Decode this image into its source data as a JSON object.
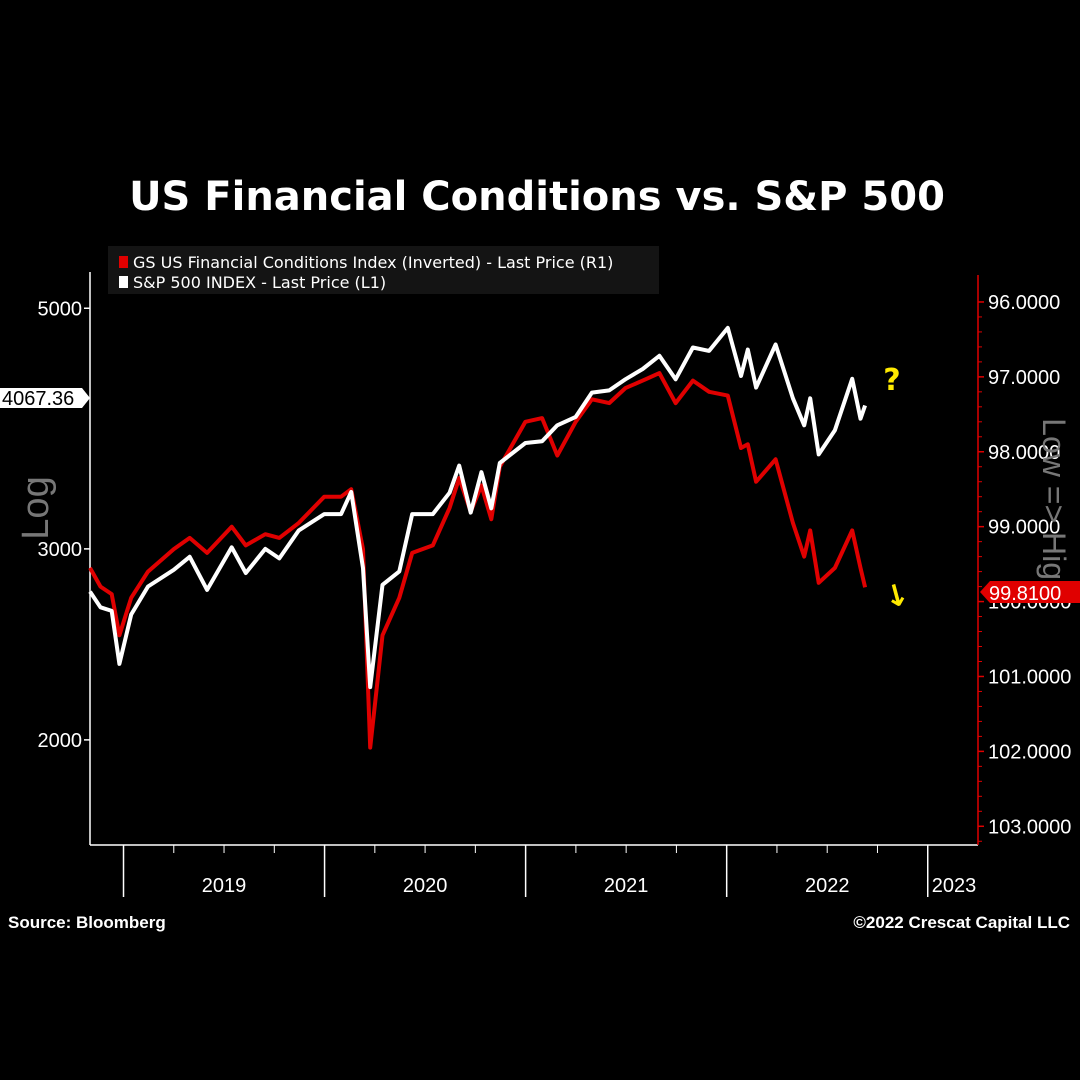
{
  "title": "US Financial Conditions vs. S&P 500",
  "footer": {
    "source": "Source: Bloomberg",
    "copyright": "©2022 Crescat Capital LLC"
  },
  "annotations": {
    "question_mark": "?",
    "arrow": "↓"
  },
  "colors": {
    "sp500": "#ffffff",
    "fci": "#e00000",
    "annotation": "#ffea00",
    "axis_right": "#e00000",
    "axis_left": "#ffffff"
  },
  "chart_data": {
    "type": "line",
    "title": "US Financial Conditions vs. S&P 500",
    "legend": [
      "GS US Financial Conditions Index (Inverted) - Last Price (R1)",
      "S&P 500 INDEX - Last Price (L1)"
    ],
    "left_axis": {
      "label": "Log",
      "scale": "log",
      "range": [
        1600,
        5400
      ],
      "ticks": [
        2000,
        3000,
        5000
      ],
      "last_value_label": "4067.36"
    },
    "right_axis": {
      "label": "Low => High",
      "inverted": true,
      "range": [
        95.6,
        103.25
      ],
      "ticks": [
        "96.0000",
        "97.0000",
        "98.0000",
        "99.0000",
        "100.0000",
        "101.0000",
        "102.0000",
        "103.0000"
      ],
      "last_value_label": "99.8100"
    },
    "x_ticks": [
      "2019",
      "2020",
      "2021",
      "2022",
      "2023"
    ],
    "x_range": [
      "2018-11",
      "2023-04"
    ],
    "series": [
      {
        "name": "S&P 500 INDEX - Last Price (L1)",
        "axis": "left",
        "points": [
          [
            "2018-11-01",
            2740
          ],
          [
            "2018-11-20",
            2650
          ],
          [
            "2018-12-10",
            2630
          ],
          [
            "2018-12-24",
            2350
          ],
          [
            "2019-01-15",
            2610
          ],
          [
            "2019-02-15",
            2770
          ],
          [
            "2019-04-01",
            2870
          ],
          [
            "2019-04-30",
            2950
          ],
          [
            "2019-05-31",
            2750
          ],
          [
            "2019-07-15",
            3010
          ],
          [
            "2019-08-10",
            2850
          ],
          [
            "2019-09-15",
            3000
          ],
          [
            "2019-10-10",
            2940
          ],
          [
            "2019-11-15",
            3120
          ],
          [
            "2019-12-31",
            3230
          ],
          [
            "2020-01-31",
            3230
          ],
          [
            "2020-02-19",
            3386
          ],
          [
            "2020-03-10",
            2880
          ],
          [
            "2020-03-23",
            2237
          ],
          [
            "2020-04-15",
            2780
          ],
          [
            "2020-05-15",
            2860
          ],
          [
            "2020-06-08",
            3230
          ],
          [
            "2020-07-15",
            3230
          ],
          [
            "2020-08-15",
            3380
          ],
          [
            "2020-09-02",
            3580
          ],
          [
            "2020-09-23",
            3240
          ],
          [
            "2020-10-12",
            3530
          ],
          [
            "2020-10-30",
            3270
          ],
          [
            "2020-11-15",
            3600
          ],
          [
            "2020-12-31",
            3756
          ],
          [
            "2021-01-31",
            3770
          ],
          [
            "2021-02-28",
            3900
          ],
          [
            "2021-03-31",
            3970
          ],
          [
            "2021-04-30",
            4180
          ],
          [
            "2021-05-31",
            4200
          ],
          [
            "2021-06-30",
            4300
          ],
          [
            "2021-07-31",
            4395
          ],
          [
            "2021-08-31",
            4520
          ],
          [
            "2021-09-30",
            4300
          ],
          [
            "2021-10-31",
            4600
          ],
          [
            "2021-11-30",
            4567
          ],
          [
            "2022-01-03",
            4796
          ],
          [
            "2022-01-27",
            4330
          ],
          [
            "2022-02-09",
            4580
          ],
          [
            "2022-02-24",
            4225
          ],
          [
            "2022-03-29",
            4630
          ],
          [
            "2022-04-30",
            4130
          ],
          [
            "2022-05-20",
            3900
          ],
          [
            "2022-05-31",
            4130
          ],
          [
            "2022-06-16",
            3666
          ],
          [
            "2022-07-15",
            3860
          ],
          [
            "2022-08-16",
            4305
          ],
          [
            "2022-08-31",
            3955
          ],
          [
            "2022-09-09",
            4067
          ]
        ]
      },
      {
        "name": "GS US Financial Conditions Index (Inverted) - Last Price (R1)",
        "axis": "right",
        "points": [
          [
            "2018-11-01",
            99.55
          ],
          [
            "2018-11-20",
            99.8
          ],
          [
            "2018-12-10",
            99.9
          ],
          [
            "2018-12-24",
            100.45
          ],
          [
            "2019-01-15",
            99.95
          ],
          [
            "2019-02-15",
            99.6
          ],
          [
            "2019-04-01",
            99.3
          ],
          [
            "2019-04-30",
            99.15
          ],
          [
            "2019-05-31",
            99.35
          ],
          [
            "2019-07-15",
            99.0
          ],
          [
            "2019-08-10",
            99.25
          ],
          [
            "2019-09-15",
            99.1
          ],
          [
            "2019-10-10",
            99.15
          ],
          [
            "2019-11-15",
            98.95
          ],
          [
            "2019-12-31",
            98.6
          ],
          [
            "2020-01-31",
            98.6
          ],
          [
            "2020-02-19",
            98.5
          ],
          [
            "2020-03-10",
            99.3
          ],
          [
            "2020-03-23",
            101.95
          ],
          [
            "2020-04-15",
            100.45
          ],
          [
            "2020-05-15",
            99.95
          ],
          [
            "2020-06-08",
            99.35
          ],
          [
            "2020-07-15",
            99.25
          ],
          [
            "2020-08-15",
            98.75
          ],
          [
            "2020-09-02",
            98.35
          ],
          [
            "2020-09-23",
            98.8
          ],
          [
            "2020-10-12",
            98.45
          ],
          [
            "2020-10-30",
            98.9
          ],
          [
            "2020-11-15",
            98.2
          ],
          [
            "2020-12-31",
            97.6
          ],
          [
            "2021-01-31",
            97.55
          ],
          [
            "2021-02-28",
            98.05
          ],
          [
            "2021-03-31",
            97.6
          ],
          [
            "2021-04-30",
            97.3
          ],
          [
            "2021-05-31",
            97.35
          ],
          [
            "2021-06-30",
            97.15
          ],
          [
            "2021-07-31",
            97.05
          ],
          [
            "2021-08-31",
            96.95
          ],
          [
            "2021-09-30",
            97.35
          ],
          [
            "2021-10-31",
            97.05
          ],
          [
            "2021-11-30",
            97.2
          ],
          [
            "2022-01-03",
            97.25
          ],
          [
            "2022-01-27",
            97.95
          ],
          [
            "2022-02-09",
            97.9
          ],
          [
            "2022-02-24",
            98.4
          ],
          [
            "2022-03-29",
            98.1
          ],
          [
            "2022-04-30",
            98.95
          ],
          [
            "2022-05-20",
            99.4
          ],
          [
            "2022-05-31",
            99.05
          ],
          [
            "2022-06-16",
            99.75
          ],
          [
            "2022-07-15",
            99.55
          ],
          [
            "2022-08-16",
            99.05
          ],
          [
            "2022-08-31",
            99.55
          ],
          [
            "2022-09-09",
            99.81
          ]
        ]
      }
    ]
  }
}
